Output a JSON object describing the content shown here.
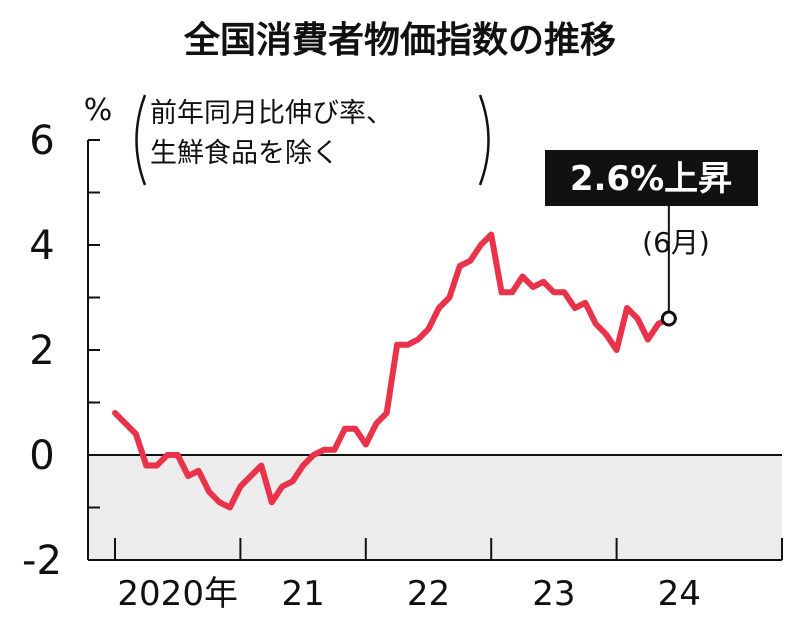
{
  "chart_data": {
    "type": "line",
    "title": "全国消費者物価指数の推移",
    "ylabel": "%",
    "note_lines": [
      "前年同月比伸び率、",
      "生鮮食品を除く"
    ],
    "ylim": [
      -2,
      6
    ],
    "yticks": [
      "6",
      "4",
      "2",
      "0",
      "-2"
    ],
    "ytick_values": [
      6,
      4,
      2,
      0,
      -2
    ],
    "x_labels": [
      "2020年",
      "21",
      "22",
      "23",
      "24"
    ],
    "x_label_months": [
      0,
      12,
      24,
      36,
      48
    ],
    "negative_region_shaded": true,
    "line_color": "#e8334a",
    "series": [
      {
        "start": "2020-01",
        "values": [
          0.8,
          0.6,
          0.4,
          -0.2,
          -0.2,
          0.0,
          0.0,
          -0.4,
          -0.3,
          -0.7,
          -0.9,
          -1.0,
          -0.6,
          -0.4,
          -0.2,
          -0.9,
          -0.6,
          -0.5,
          -0.2,
          0.0,
          0.1,
          0.1,
          0.5,
          0.5,
          0.2,
          0.6,
          0.8,
          2.1,
          2.1,
          2.2,
          2.4,
          2.8,
          3.0,
          3.6,
          3.7,
          4.0,
          4.2,
          3.1,
          3.1,
          3.4,
          3.2,
          3.3,
          3.1,
          3.1,
          2.8,
          2.9,
          2.5,
          2.3,
          2.0,
          2.8,
          2.6,
          2.2,
          2.5,
          2.6
        ]
      }
    ],
    "callout": {
      "value_label": "2.6%上昇",
      "month_label": "(6月)",
      "last_value": 2.6
    }
  }
}
